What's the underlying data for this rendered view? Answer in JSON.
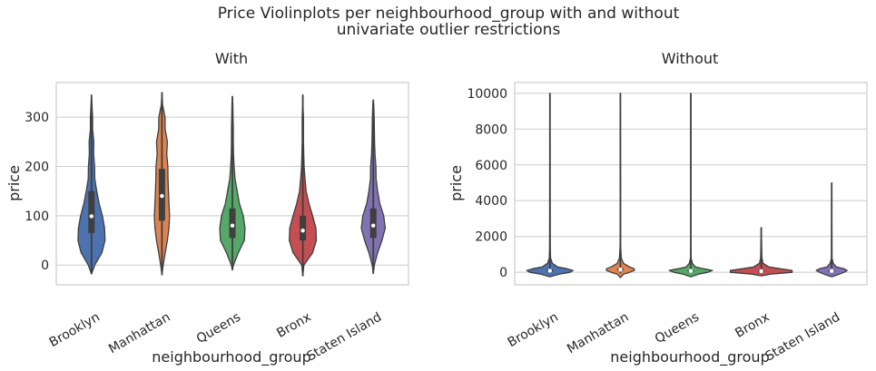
{
  "figure": {
    "title_line1": "Price Violinplots per neighbourhood_group with and without",
    "title_line2": "univariate outlier restrictions"
  },
  "chart_data": [
    {
      "type": "violin",
      "title": "With",
      "xlabel": "neighbourhood_group",
      "ylabel": "price",
      "ylim": [
        -40,
        370
      ],
      "yticks": [
        0,
        100,
        200,
        300
      ],
      "grid": true,
      "categories": [
        "Brooklyn",
        "Manhattan",
        "Queens",
        "Bronx",
        "Staten Island"
      ],
      "colors": [
        "#4c72b0",
        "#dd8452",
        "#55a868",
        "#c44e52",
        "#8172b3"
      ],
      "series": [
        {
          "min": -18,
          "max": 345,
          "q1": 65,
          "median": 99,
          "q3": 150,
          "density": [
            [
              -18,
              0.0
            ],
            [
              0,
              0.15
            ],
            [
              25,
              0.48
            ],
            [
              50,
              0.62
            ],
            [
              75,
              0.6
            ],
            [
              100,
              0.5
            ],
            [
              125,
              0.35
            ],
            [
              150,
              0.24
            ],
            [
              175,
              0.15
            ],
            [
              200,
              0.14
            ],
            [
              225,
              0.1
            ],
            [
              250,
              0.11
            ],
            [
              275,
              0.05
            ],
            [
              300,
              0.05
            ],
            [
              325,
              0.02
            ],
            [
              345,
              0.0
            ]
          ]
        },
        {
          "min": -20,
          "max": 350,
          "q1": 90,
          "median": 140,
          "q3": 195,
          "density": [
            [
              -20,
              0.0
            ],
            [
              0,
              0.06
            ],
            [
              25,
              0.15
            ],
            [
              50,
              0.25
            ],
            [
              75,
              0.32
            ],
            [
              100,
              0.35
            ],
            [
              125,
              0.32
            ],
            [
              150,
              0.3
            ],
            [
              175,
              0.28
            ],
            [
              200,
              0.27
            ],
            [
              225,
              0.22
            ],
            [
              250,
              0.25
            ],
            [
              275,
              0.15
            ],
            [
              300,
              0.14
            ],
            [
              325,
              0.03
            ],
            [
              350,
              0.0
            ]
          ]
        },
        {
          "min": -10,
          "max": 342,
          "q1": 55,
          "median": 80,
          "q3": 115,
          "density": [
            [
              -10,
              0.0
            ],
            [
              0,
              0.05
            ],
            [
              25,
              0.27
            ],
            [
              50,
              0.55
            ],
            [
              75,
              0.58
            ],
            [
              100,
              0.5
            ],
            [
              125,
              0.32
            ],
            [
              150,
              0.22
            ],
            [
              175,
              0.12
            ],
            [
              200,
              0.08
            ],
            [
              225,
              0.05
            ],
            [
              250,
              0.04
            ],
            [
              275,
              0.04
            ],
            [
              300,
              0.03
            ],
            [
              325,
              0.02
            ],
            [
              342,
              0.0
            ]
          ]
        },
        {
          "min": -22,
          "max": 345,
          "q1": 50,
          "median": 70,
          "q3": 100,
          "density": [
            [
              -22,
              0.0
            ],
            [
              0,
              0.05
            ],
            [
              25,
              0.45
            ],
            [
              50,
              0.62
            ],
            [
              75,
              0.6
            ],
            [
              100,
              0.45
            ],
            [
              125,
              0.28
            ],
            [
              150,
              0.15
            ],
            [
              175,
              0.1
            ],
            [
              200,
              0.06
            ],
            [
              225,
              0.04
            ],
            [
              250,
              0.03
            ],
            [
              275,
              0.03
            ],
            [
              300,
              0.03
            ],
            [
              325,
              0.01
            ],
            [
              345,
              0.0
            ]
          ]
        },
        {
          "min": -17,
          "max": 335,
          "q1": 55,
          "median": 80,
          "q3": 115,
          "density": [
            [
              -17,
              0.0
            ],
            [
              0,
              0.05
            ],
            [
              25,
              0.2
            ],
            [
              50,
              0.4
            ],
            [
              75,
              0.55
            ],
            [
              100,
              0.48
            ],
            [
              125,
              0.3
            ],
            [
              150,
              0.2
            ],
            [
              175,
              0.13
            ],
            [
              200,
              0.12
            ],
            [
              225,
              0.08
            ],
            [
              250,
              0.06
            ],
            [
              275,
              0.05
            ],
            [
              300,
              0.04
            ],
            [
              325,
              0.02
            ],
            [
              335,
              0.0
            ]
          ]
        }
      ]
    },
    {
      "type": "violin",
      "title": "Without",
      "xlabel": "neighbourhood_group",
      "ylabel": "price",
      "ylim": [
        -700,
        10600
      ],
      "yticks": [
        0,
        2000,
        4000,
        6000,
        8000,
        10000
      ],
      "grid": true,
      "categories": [
        "Brooklyn",
        "Manhattan",
        "Queens",
        "Bronx",
        "Staten Island"
      ],
      "colors": [
        "#4c72b0",
        "#dd8452",
        "#55a868",
        "#c44e52",
        "#8172b3"
      ],
      "series": [
        {
          "min": -50,
          "max": 10000,
          "q1": 60,
          "median": 90,
          "q3": 150,
          "density": [
            [
              -250,
              0.0
            ],
            [
              -100,
              0.3
            ],
            [
              0,
              0.65
            ],
            [
              100,
              0.75
            ],
            [
              200,
              0.55
            ],
            [
              300,
              0.25
            ],
            [
              500,
              0.08
            ],
            [
              800,
              0.02
            ],
            [
              1500,
              0.01
            ],
            [
              10000,
              0.0
            ]
          ]
        },
        {
          "min": -50,
          "max": 10000,
          "q1": 95,
          "median": 150,
          "q3": 220,
          "density": [
            [
              -300,
              0.0
            ],
            [
              -100,
              0.1
            ],
            [
              0,
              0.3
            ],
            [
              100,
              0.45
            ],
            [
              200,
              0.45
            ],
            [
              300,
              0.3
            ],
            [
              500,
              0.1
            ],
            [
              800,
              0.03
            ],
            [
              1500,
              0.01
            ],
            [
              10000,
              0.0
            ]
          ]
        },
        {
          "min": -50,
          "max": 10000,
          "q1": 50,
          "median": 75,
          "q3": 110,
          "density": [
            [
              -250,
              0.0
            ],
            [
              -100,
              0.25
            ],
            [
              0,
              0.55
            ],
            [
              100,
              0.7
            ],
            [
              200,
              0.4
            ],
            [
              300,
              0.15
            ],
            [
              500,
              0.05
            ],
            [
              800,
              0.01
            ],
            [
              1500,
              0.0
            ],
            [
              10000,
              0.0
            ]
          ]
        },
        {
          "min": -30,
          "max": 2500,
          "q1": 45,
          "median": 65,
          "q3": 99,
          "density": [
            [
              -200,
              0.0
            ],
            [
              -100,
              0.3
            ],
            [
              0,
              1.0
            ],
            [
              100,
              1.0
            ],
            [
              200,
              0.6
            ],
            [
              300,
              0.25
            ],
            [
              500,
              0.06
            ],
            [
              800,
              0.02
            ],
            [
              2500,
              0.0
            ]
          ]
        },
        {
          "min": -50,
          "max": 5000,
          "q1": 50,
          "median": 75,
          "q3": 110,
          "density": [
            [
              -250,
              0.0
            ],
            [
              -100,
              0.25
            ],
            [
              0,
              0.4
            ],
            [
              100,
              0.5
            ],
            [
              200,
              0.4
            ],
            [
              300,
              0.15
            ],
            [
              500,
              0.05
            ],
            [
              800,
              0.01
            ],
            [
              5000,
              0.0
            ]
          ]
        }
      ]
    }
  ]
}
